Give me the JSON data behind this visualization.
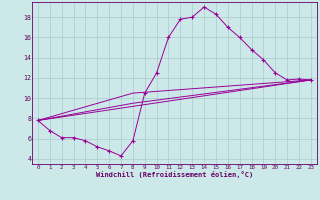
{
  "xlabel": "Windchill (Refroidissement éolien,°C)",
  "background_color": "#cce8e8",
  "line_color": "#990099",
  "xlim": [
    -0.5,
    23.5
  ],
  "ylim": [
    3.5,
    19.5
  ],
  "xticks": [
    0,
    1,
    2,
    3,
    4,
    5,
    6,
    7,
    8,
    9,
    10,
    11,
    12,
    13,
    14,
    15,
    16,
    17,
    18,
    19,
    20,
    21,
    22,
    23
  ],
  "yticks": [
    4,
    6,
    8,
    10,
    12,
    14,
    16,
    18
  ],
  "main_series": [
    [
      0,
      7.8
    ],
    [
      1,
      6.8
    ],
    [
      2,
      6.1
    ],
    [
      3,
      6.1
    ],
    [
      4,
      5.8
    ],
    [
      5,
      5.2
    ],
    [
      6,
      4.8
    ],
    [
      7,
      4.3
    ],
    [
      8,
      5.8
    ],
    [
      9,
      10.5
    ],
    [
      10,
      12.5
    ],
    [
      11,
      16.0
    ],
    [
      12,
      17.8
    ],
    [
      13,
      18.0
    ],
    [
      14,
      19.0
    ],
    [
      15,
      18.3
    ],
    [
      16,
      17.0
    ],
    [
      17,
      16.0
    ],
    [
      18,
      14.8
    ],
    [
      19,
      13.8
    ],
    [
      20,
      12.5
    ],
    [
      21,
      11.8
    ],
    [
      22,
      11.9
    ],
    [
      23,
      11.8
    ]
  ],
  "trend_line1": [
    [
      0,
      7.8
    ],
    [
      23,
      11.8
    ]
  ],
  "trend_line2": [
    [
      0,
      7.8
    ],
    [
      8,
      9.5
    ],
    [
      23,
      11.8
    ]
  ],
  "trend_line3": [
    [
      0,
      7.8
    ],
    [
      8,
      10.5
    ],
    [
      23,
      11.8
    ]
  ],
  "grid_color": "#aacccc",
  "marker": "+",
  "markersize": 3.5,
  "linewidth": 0.7
}
